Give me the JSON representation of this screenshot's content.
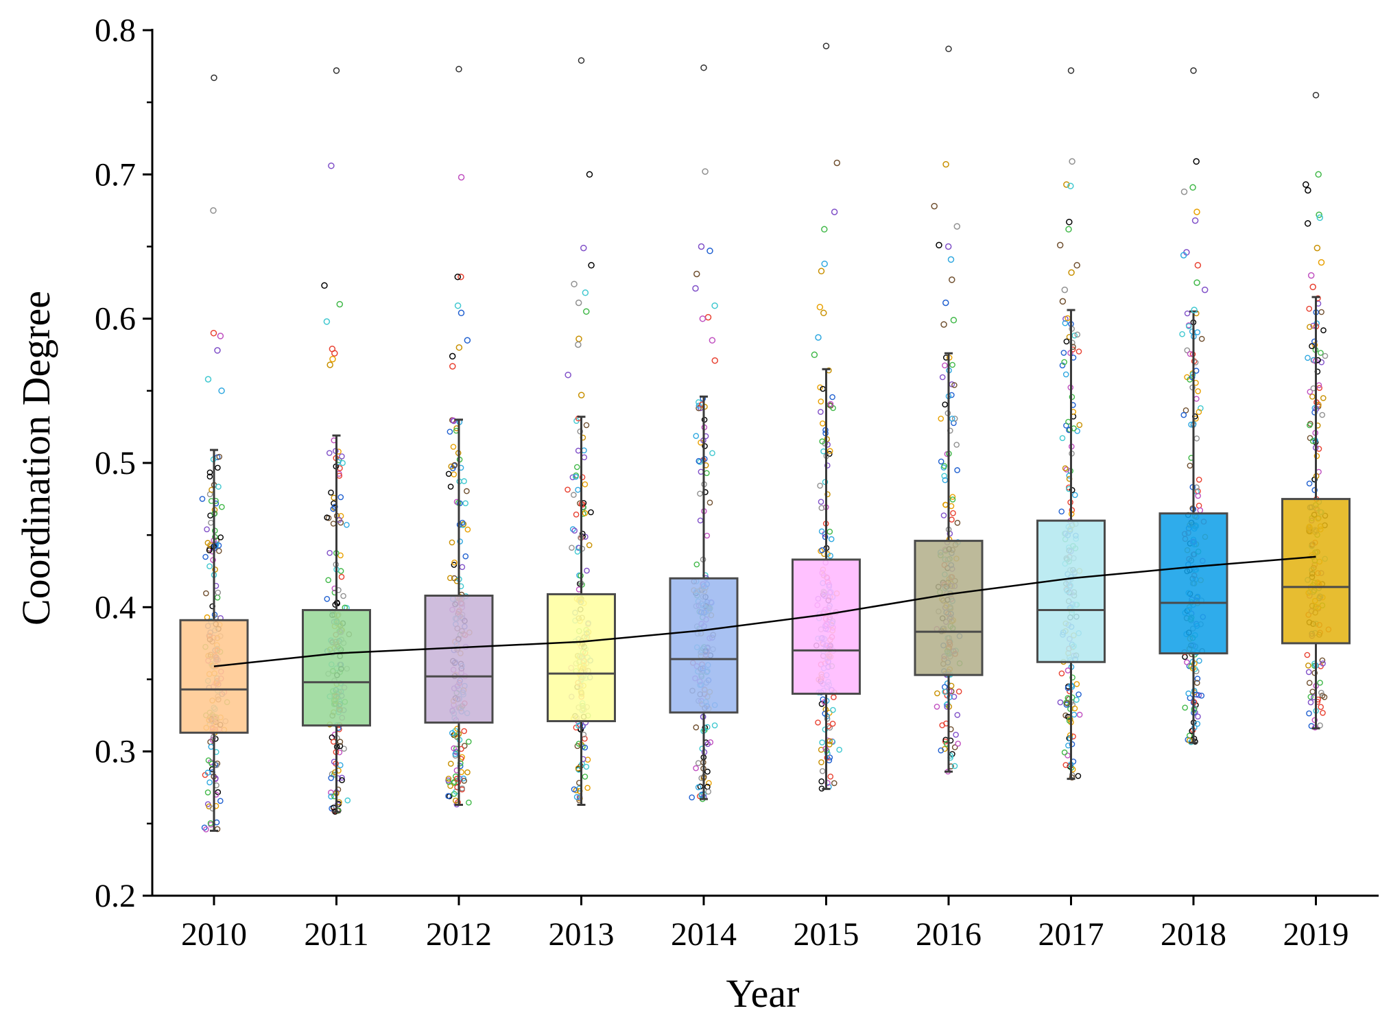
{
  "chart_data": {
    "type": "box",
    "title": "",
    "xlabel": "Year",
    "ylabel": "Coordination Degree",
    "ylim": [
      0.2,
      0.8
    ],
    "yticks": [
      "0.2",
      "0.3",
      "0.4",
      "0.5",
      "0.6",
      "0.7",
      "0.8"
    ],
    "categories": [
      "2010",
      "2011",
      "2012",
      "2013",
      "2014",
      "2015",
      "2016",
      "2017",
      "2018",
      "2019"
    ],
    "box_colors": [
      "#FFC890",
      "#98D898",
      "#C8B4D8",
      "#FFFFA0",
      "#9CB8F0",
      "#FFB8FF",
      "#B4B08C",
      "#B4E8F0",
      "#12A0E8",
      "#E4B414"
    ],
    "boxes": [
      {
        "year": "2010",
        "q1": 0.313,
        "median": 0.343,
        "q3": 0.391,
        "whisker_low": 0.245,
        "whisker_high": 0.509,
        "mean": 0.359
      },
      {
        "year": "2011",
        "q1": 0.318,
        "median": 0.348,
        "q3": 0.398,
        "whisker_low": 0.258,
        "whisker_high": 0.519,
        "mean": 0.368
      },
      {
        "year": "2012",
        "q1": 0.32,
        "median": 0.352,
        "q3": 0.408,
        "whisker_low": 0.263,
        "whisker_high": 0.53,
        "mean": 0.372
      },
      {
        "year": "2013",
        "q1": 0.321,
        "median": 0.354,
        "q3": 0.409,
        "whisker_low": 0.263,
        "whisker_high": 0.532,
        "mean": 0.376
      },
      {
        "year": "2014",
        "q1": 0.327,
        "median": 0.364,
        "q3": 0.42,
        "whisker_low": 0.267,
        "whisker_high": 0.546,
        "mean": 0.384
      },
      {
        "year": "2015",
        "q1": 0.34,
        "median": 0.37,
        "q3": 0.433,
        "whisker_low": 0.274,
        "whisker_high": 0.565,
        "mean": 0.395
      },
      {
        "year": "2016",
        "q1": 0.353,
        "median": 0.383,
        "q3": 0.446,
        "whisker_low": 0.286,
        "whisker_high": 0.576,
        "mean": 0.409
      },
      {
        "year": "2017",
        "q1": 0.362,
        "median": 0.398,
        "q3": 0.46,
        "whisker_low": 0.281,
        "whisker_high": 0.606,
        "mean": 0.42
      },
      {
        "year": "2018",
        "q1": 0.368,
        "median": 0.403,
        "q3": 0.465,
        "whisker_low": 0.306,
        "whisker_high": 0.605,
        "mean": 0.428
      },
      {
        "year": "2019",
        "q1": 0.375,
        "median": 0.414,
        "q3": 0.475,
        "whisker_low": 0.316,
        "whisker_high": 0.615,
        "mean": 0.435
      }
    ],
    "outliers_high": [
      {
        "year": "2010",
        "values": [
          0.767,
          0.675,
          0.59,
          0.588,
          0.578,
          0.558,
          0.55
        ]
      },
      {
        "year": "2011",
        "values": [
          0.772,
          0.706,
          0.623,
          0.61,
          0.598,
          0.579,
          0.576,
          0.572,
          0.568
        ]
      },
      {
        "year": "2012",
        "values": [
          0.773,
          0.698,
          0.629,
          0.629,
          0.609,
          0.604,
          0.585,
          0.58,
          0.574,
          0.567
        ]
      },
      {
        "year": "2013",
        "values": [
          0.779,
          0.7,
          0.649,
          0.637,
          0.624,
          0.618,
          0.611,
          0.605,
          0.586,
          0.582,
          0.561,
          0.547
        ]
      },
      {
        "year": "2014",
        "values": [
          0.774,
          0.702,
          0.65,
          0.647,
          0.631,
          0.621,
          0.609,
          0.601,
          0.6,
          0.585,
          0.571
        ]
      },
      {
        "year": "2015",
        "values": [
          0.789,
          0.708,
          0.674,
          0.662,
          0.638,
          0.633,
          0.608,
          0.604,
          0.587,
          0.575
        ]
      },
      {
        "year": "2016",
        "values": [
          0.787,
          0.707,
          0.678,
          0.664,
          0.651,
          0.65,
          0.641,
          0.627,
          0.611,
          0.599,
          0.596
        ]
      },
      {
        "year": "2017",
        "values": [
          0.772,
          0.709,
          0.693,
          0.692,
          0.667,
          0.662,
          0.651,
          0.637,
          0.632,
          0.62,
          0.612
        ]
      },
      {
        "year": "2018",
        "values": [
          0.772,
          0.709,
          0.691,
          0.688,
          0.674,
          0.668,
          0.646,
          0.644,
          0.637,
          0.625,
          0.62,
          0.606
        ]
      },
      {
        "year": "2019",
        "values": [
          0.755,
          0.7,
          0.693,
          0.689,
          0.672,
          0.67,
          0.666,
          0.649,
          0.639,
          0.63,
          0.622
        ]
      }
    ],
    "jitter_point_colors": [
      "#E8A000",
      "#E84030",
      "#30A8E0",
      "#40B848",
      "#8050C8",
      "#C050C0",
      "#705030",
      "#40C8D0",
      "#2060D0",
      "#909090",
      "#C89000",
      "#000000"
    ],
    "mean_line": true,
    "grid": false
  }
}
